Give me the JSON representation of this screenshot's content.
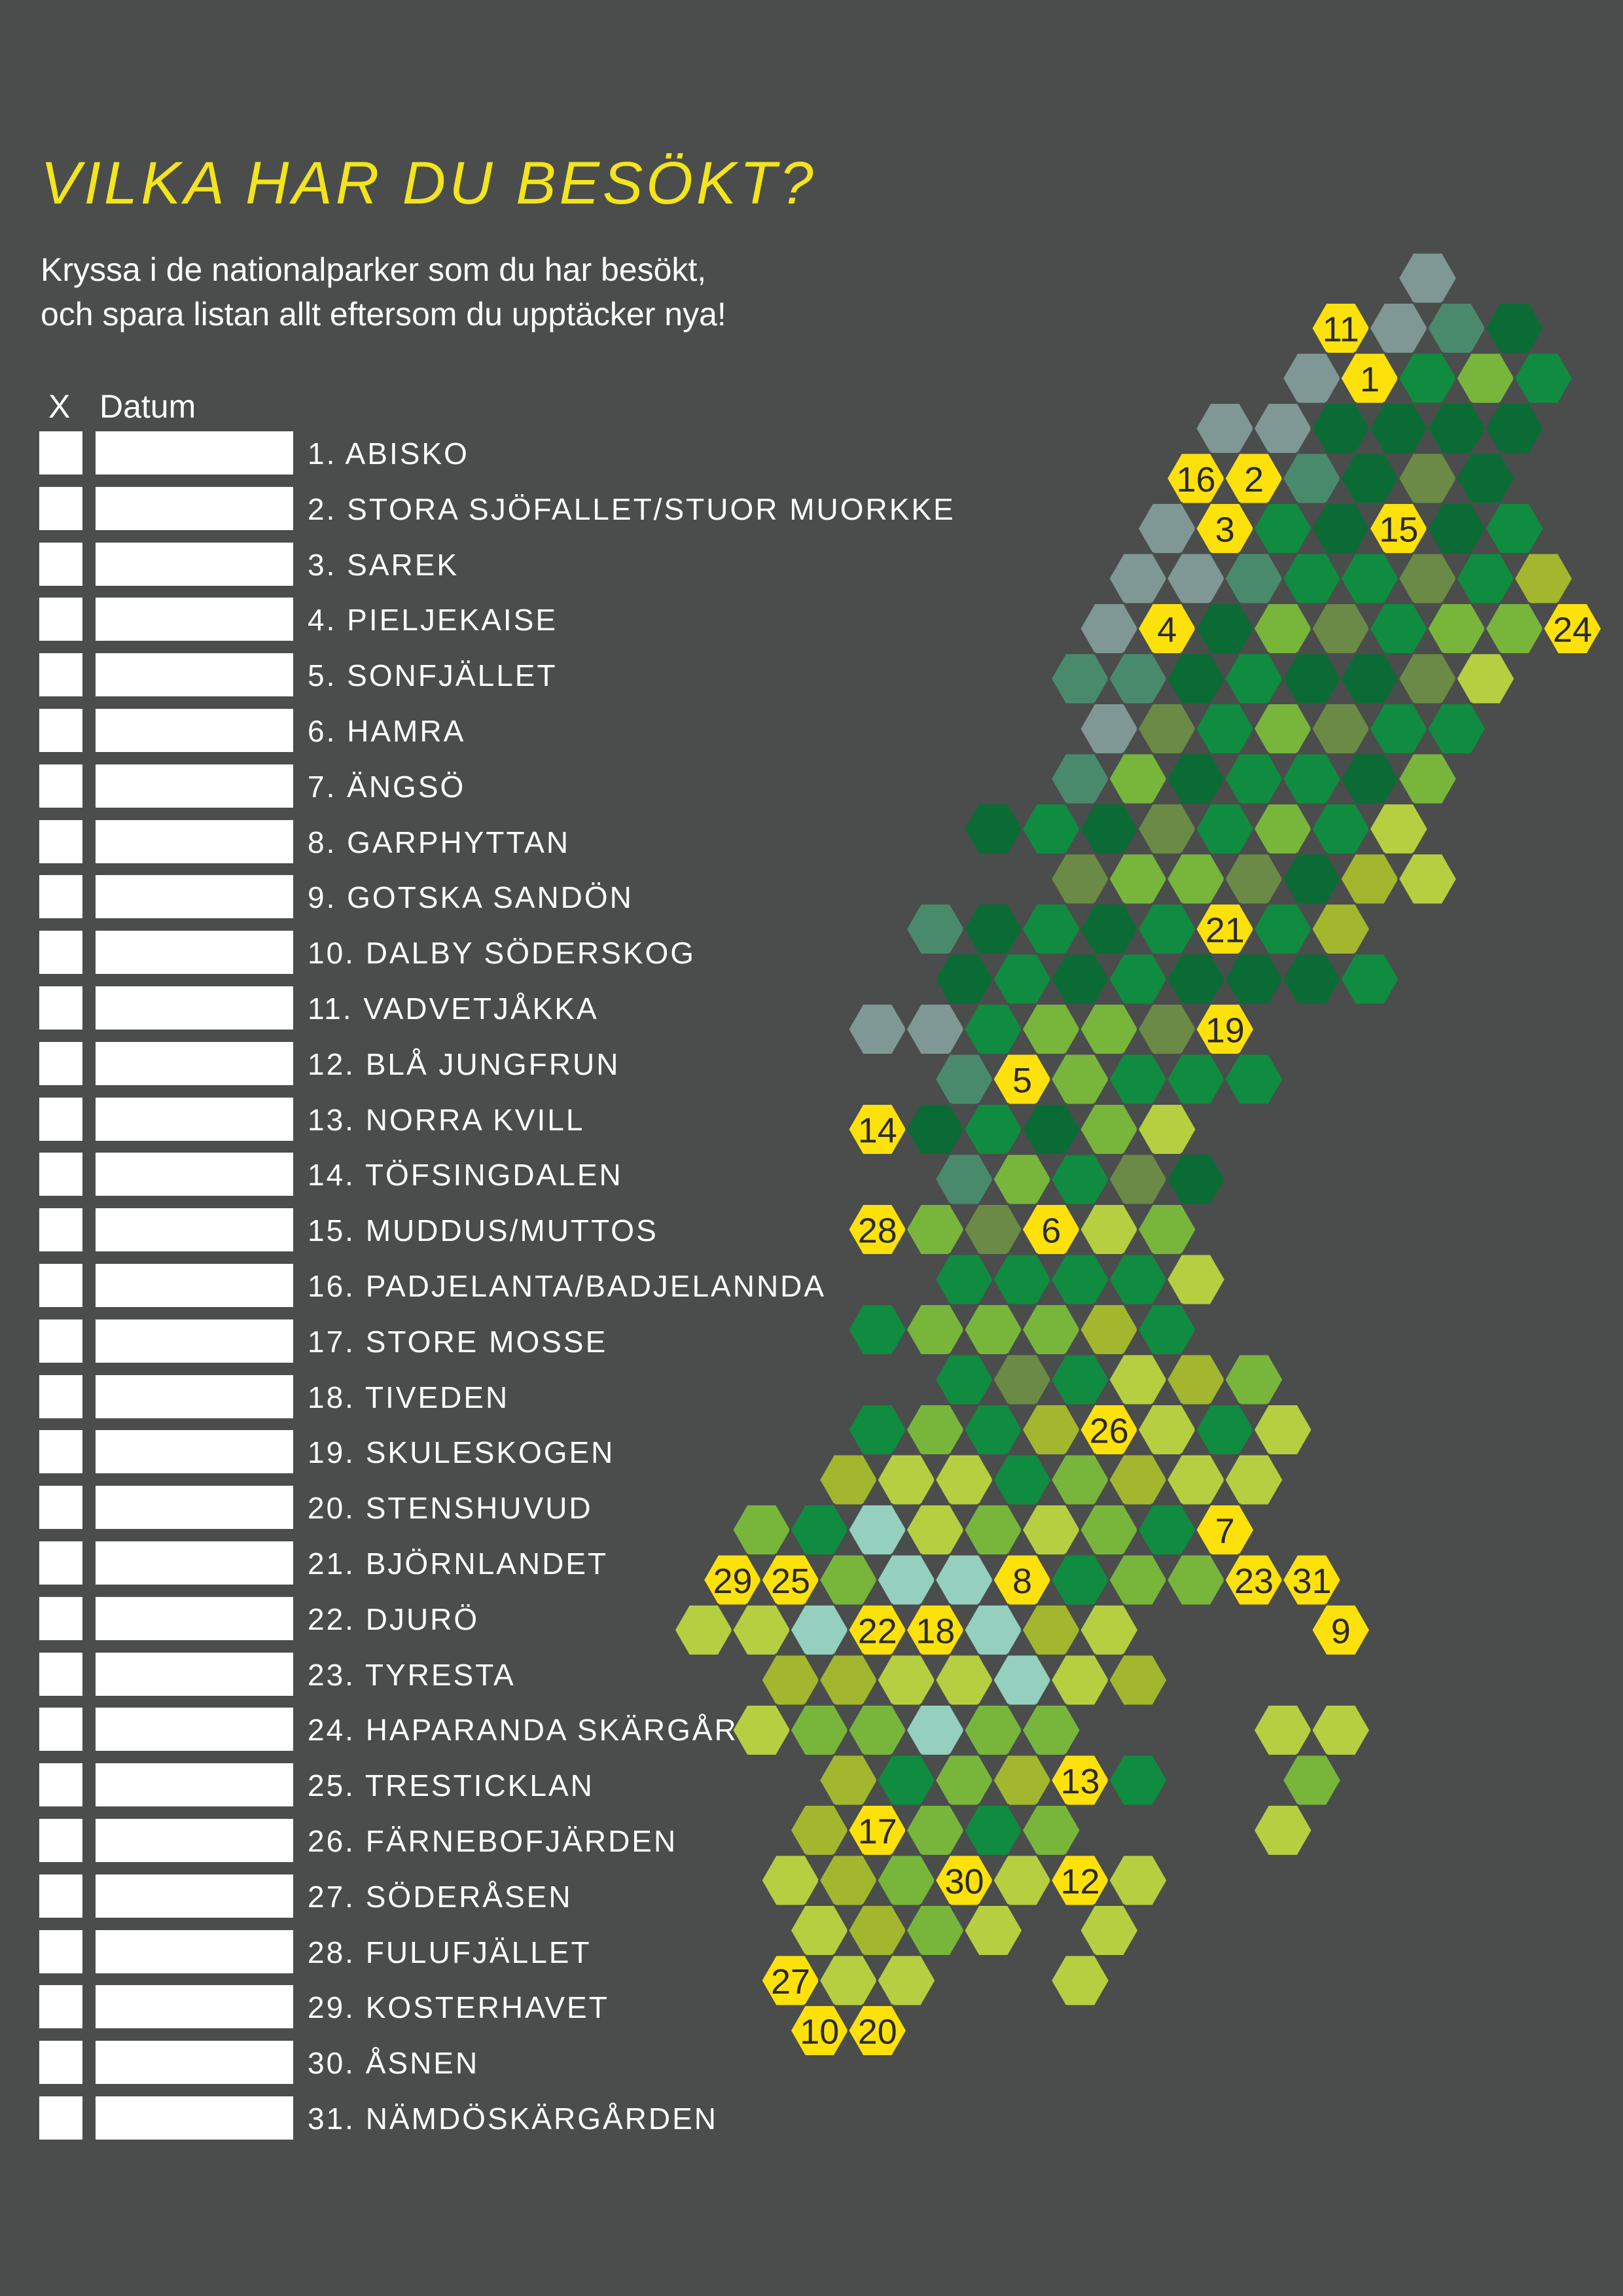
{
  "title": "VILKA HAR DU BESÖKT?",
  "subtitle": "Kryssa i de nationalparker som du har besökt,\noch spara listan allt eftersom du upptäcker nya!",
  "header": {
    "x": "X",
    "datum": "Datum"
  },
  "parks": [
    "1. ABISKO",
    "2. STORA SJÖFALLET/STUOR MUORKKE",
    "3. SAREK",
    "4. PIELJEKAISE",
    "5. SONFJÄLLET",
    "6. HAMRA",
    "7. ÄNGSÖ",
    "8. GARPHYTTAN",
    "9. GOTSKA SANDÖN",
    "10. DALBY SÖDERSKOG",
    "11. VADVETJÅKKA",
    "12. BLÅ JUNGFRUN",
    "13. NORRA KVILL",
    "14. TÖFSINGDALEN",
    "15. MUDDUS/MUTTOS",
    "16. PADJELANTA/BADJELANNDA",
    "17. STORE MOSSE",
    "18. TIVEDEN",
    "19. SKULESKOGEN",
    "20. STENSHUVUD",
    "21. BJÖRNLANDET",
    "22. DJURÖ",
    "23. TYRESTA",
    "24. HAPARANDA SKÄRGÅRD",
    "25. TRESTICKLAN",
    "26. FÄRNEBOFJÄRDEN",
    "27. SÖDERÅSEN",
    "28. FULUFJÄLLET",
    "29. KOSTERHAVET",
    "30. ÅSNEN",
    "31. NÄMDÖSKÄRGÅRDEN"
  ],
  "colors": {
    "background": "#4a4d4c",
    "title": "#f3e41c",
    "marker": "#fde10a",
    "palette": [
      "#7f9895",
      "#4a8a6c",
      "#0a6b35",
      "#0f8c3f",
      "#6a8a45",
      "#77b63b",
      "#a2b72d",
      "#b5cf40",
      "#94d0bd"
    ]
  },
  "map": {
    "grid_rows": [
      {
        "c": [
          [
            "0",
            9
          ]
        ]
      },
      {
        "c": [
          [
            "Y11",
            8
          ],
          [
            "0",
            9
          ],
          [
            "1",
            10
          ],
          [
            "2",
            11
          ]
        ]
      },
      {
        "c": [
          [
            "0",
            7
          ],
          [
            "Y1",
            8
          ],
          [
            "3",
            9
          ],
          [
            "5",
            10
          ],
          [
            "3",
            11
          ]
        ]
      },
      {
        "c": [
          [
            "0",
            6
          ],
          [
            "0",
            7
          ],
          [
            "2",
            8
          ],
          [
            "2",
            9
          ],
          [
            "2",
            10
          ],
          [
            "2",
            11
          ]
        ]
      },
      {
        "c": [
          [
            "Y16",
            5
          ],
          [
            "Y2",
            6
          ],
          [
            "1",
            7
          ],
          [
            "2",
            8
          ],
          [
            "4",
            9
          ],
          [
            "2",
            10
          ]
        ]
      },
      {
        "c": [
          [
            "0",
            5
          ],
          [
            "Y3",
            6
          ],
          [
            "3",
            7
          ],
          [
            "2",
            8
          ],
          [
            "Y15",
            9
          ],
          [
            "2",
            10
          ],
          [
            "3",
            11
          ]
        ]
      },
      {
        "c": [
          [
            "0",
            4
          ],
          [
            "0",
            5
          ],
          [
            "1",
            6
          ],
          [
            "3",
            7
          ],
          [
            "3",
            8
          ],
          [
            "4",
            9
          ],
          [
            "3",
            10
          ],
          [
            "6",
            11
          ]
        ]
      },
      {
        "c": [
          [
            "0",
            4
          ],
          [
            "Y4",
            5
          ],
          [
            "2",
            6
          ],
          [
            "5",
            7
          ],
          [
            "4",
            8
          ],
          [
            "3",
            9
          ],
          [
            "5",
            10
          ],
          [
            "5",
            11
          ],
          [
            "Y24",
            12
          ]
        ]
      },
      {
        "c": [
          [
            "1",
            3
          ],
          [
            "1",
            4
          ],
          [
            "2",
            5
          ],
          [
            "3",
            6
          ],
          [
            "2",
            7
          ],
          [
            "2",
            8
          ],
          [
            "4",
            9
          ],
          [
            "7",
            10
          ]
        ]
      },
      {
        "c": [
          [
            "0",
            4
          ],
          [
            "4",
            5
          ],
          [
            "3",
            6
          ],
          [
            "5",
            7
          ],
          [
            "4",
            8
          ],
          [
            "3",
            9
          ],
          [
            "3",
            10
          ]
        ]
      },
      {
        "c": [
          [
            "1",
            3
          ],
          [
            "5",
            4
          ],
          [
            "2",
            5
          ],
          [
            "3",
            6
          ],
          [
            "3",
            7
          ],
          [
            "2",
            8
          ],
          [
            "5",
            9
          ]
        ]
      },
      {
        "c": [
          [
            "2",
            2
          ],
          [
            "3",
            3
          ],
          [
            "2",
            4
          ],
          [
            "4",
            5
          ],
          [
            "3",
            6
          ],
          [
            "5",
            7
          ],
          [
            "3",
            8
          ],
          [
            "7",
            9
          ]
        ]
      },
      {
        "c": [
          [
            "4",
            3
          ],
          [
            "5",
            4
          ],
          [
            "5",
            5
          ],
          [
            "4",
            6
          ],
          [
            "2",
            7
          ],
          [
            "6",
            8
          ],
          [
            "7",
            9
          ]
        ]
      },
      {
        "c": [
          [
            "1",
            1
          ],
          [
            "2",
            2
          ],
          [
            "3",
            3
          ],
          [
            "2",
            4
          ],
          [
            "3",
            5
          ],
          [
            "Y21",
            6
          ],
          [
            "3",
            7
          ],
          [
            "6",
            8
          ]
        ]
      },
      {
        "c": [
          [
            "2",
            1
          ],
          [
            "3",
            2
          ],
          [
            "2",
            3
          ],
          [
            "3",
            4
          ],
          [
            "2",
            5
          ],
          [
            "2",
            6
          ],
          [
            "2",
            7
          ],
          [
            "3",
            8
          ]
        ]
      },
      {
        "c": [
          [
            "0",
            0
          ],
          [
            "0",
            1
          ],
          [
            "3",
            2
          ],
          [
            "5",
            3
          ],
          [
            "5",
            4
          ],
          [
            "4",
            5
          ],
          [
            "Y19",
            6
          ]
        ]
      },
      {
        "c": [
          [
            "1",
            1
          ],
          [
            "Y5",
            2
          ],
          [
            "5",
            3
          ],
          [
            "3",
            4
          ],
          [
            "3",
            5
          ],
          [
            "3",
            6
          ]
        ]
      },
      {
        "c": [
          [
            "Y14",
            0
          ],
          [
            "2",
            1
          ],
          [
            "3",
            2
          ],
          [
            "2",
            3
          ],
          [
            "5",
            4
          ],
          [
            "7",
            5
          ]
        ]
      },
      {
        "c": [
          [
            "1",
            1
          ],
          [
            "5",
            2
          ],
          [
            "3",
            3
          ],
          [
            "4",
            4
          ],
          [
            "2",
            5
          ]
        ]
      },
      {
        "c": [
          [
            "Y28",
            0
          ],
          [
            "5",
            1
          ],
          [
            "4",
            2
          ],
          [
            "Y6",
            3
          ],
          [
            "7",
            4
          ],
          [
            "5",
            5
          ]
        ]
      },
      {
        "c": [
          [
            "3",
            1
          ],
          [
            "3",
            2
          ],
          [
            "3",
            3
          ],
          [
            "3",
            4
          ],
          [
            "7",
            5
          ]
        ]
      },
      {
        "c": [
          [
            "3",
            0
          ],
          [
            "5",
            1
          ],
          [
            "5",
            2
          ],
          [
            "5",
            3
          ],
          [
            "6",
            4
          ],
          [
            "3",
            5
          ]
        ]
      },
      {
        "c": [
          [
            "3",
            1
          ],
          [
            "4",
            2
          ],
          [
            "3",
            3
          ],
          [
            "7",
            4
          ],
          [
            "6",
            5
          ],
          [
            "5",
            6
          ]
        ]
      },
      {
        "c": [
          [
            "3",
            0
          ],
          [
            "5",
            1
          ],
          [
            "3",
            2
          ],
          [
            "6",
            3
          ],
          [
            "Y26",
            4
          ],
          [
            "7",
            5
          ],
          [
            "3",
            6
          ],
          [
            "7",
            7
          ]
        ]
      },
      {
        "c": [
          [
            "6",
            -1
          ],
          [
            "7",
            0
          ],
          [
            "7",
            1
          ],
          [
            "3",
            2
          ],
          [
            "5",
            3
          ],
          [
            "6",
            4
          ],
          [
            "7",
            5
          ],
          [
            "7",
            6
          ]
        ]
      },
      {
        "c": [
          [
            "5",
            -2
          ],
          [
            "3",
            -1
          ],
          [
            "8",
            0
          ],
          [
            "7",
            1
          ],
          [
            "5",
            2
          ],
          [
            "7",
            3
          ],
          [
            "5",
            4
          ],
          [
            "3",
            5
          ],
          [
            "Y7",
            6
          ]
        ]
      },
      {
        "c": [
          [
            "Y29",
            -3
          ],
          [
            "Y25",
            -2
          ],
          [
            "5",
            -1
          ],
          [
            "8",
            0
          ],
          [
            "8",
            1
          ],
          [
            "Y8",
            2
          ],
          [
            "3",
            3
          ],
          [
            "5",
            4
          ],
          [
            "5",
            5
          ],
          [
            "Y23",
            6
          ],
          [
            "Y31",
            7
          ]
        ]
      },
      {
        "c": [
          [
            "7",
            -3
          ],
          [
            "7",
            -2
          ],
          [
            "8",
            -1
          ],
          [
            "Y22",
            0
          ],
          [
            "Y18",
            1
          ],
          [
            "8",
            2
          ],
          [
            "6",
            3
          ],
          [
            "7",
            4
          ],
          [
            "Y9",
            8
          ]
        ]
      },
      {
        "c": [
          [
            "6",
            -2
          ],
          [
            "6",
            -1
          ],
          [
            "7",
            0
          ],
          [
            "7",
            1
          ],
          [
            "8",
            2
          ],
          [
            "7",
            3
          ],
          [
            "6",
            4
          ]
        ]
      },
      {
        "c": [
          [
            "7",
            -2
          ],
          [
            "5",
            -1
          ],
          [
            "5",
            0
          ],
          [
            "8",
            1
          ],
          [
            "5",
            2
          ],
          [
            "5",
            3
          ],
          [
            "7",
            7
          ],
          [
            "7",
            8
          ]
        ]
      },
      {
        "c": [
          [
            "6",
            -1
          ],
          [
            "3",
            0
          ],
          [
            "5",
            1
          ],
          [
            "6",
            2
          ],
          [
            "Y13",
            3
          ],
          [
            "3",
            4
          ],
          [
            "5",
            7
          ]
        ]
      },
      {
        "c": [
          [
            "6",
            -1
          ],
          [
            "Y17",
            0
          ],
          [
            "5",
            1
          ],
          [
            "3",
            2
          ],
          [
            "5",
            3
          ],
          [
            "7",
            7
          ]
        ]
      },
      {
        "c": [
          [
            "7",
            -2
          ],
          [
            "6",
            -1
          ],
          [
            "5",
            0
          ],
          [
            "Y30",
            1
          ],
          [
            "7",
            2
          ],
          [
            "Y12",
            3
          ],
          [
            "7",
            4
          ]
        ]
      },
      {
        "c": [
          [
            "7",
            -1
          ],
          [
            "6",
            0
          ],
          [
            "5",
            1
          ],
          [
            "7",
            2
          ],
          [
            "7",
            4
          ]
        ]
      },
      {
        "c": [
          [
            "Y27",
            -2
          ],
          [
            "7",
            -1
          ],
          [
            "7",
            0
          ],
          [
            "7",
            3
          ]
        ]
      },
      {
        "c": [
          [
            "Y10",
            -1
          ],
          [
            "Y20",
            0
          ]
        ]
      }
    ]
  }
}
